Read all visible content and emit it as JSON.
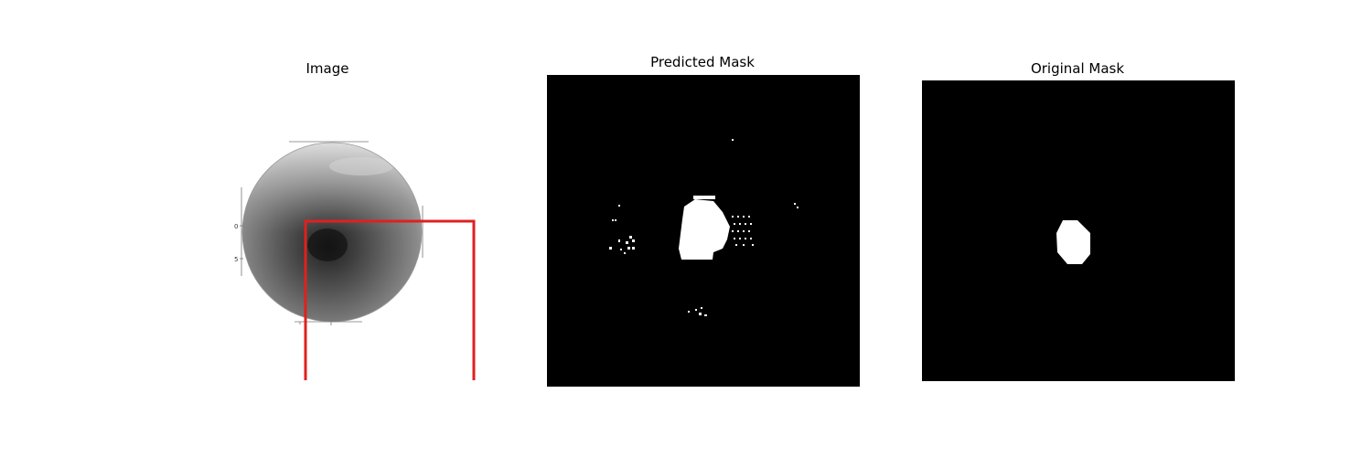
{
  "panels": [
    {
      "title": "Image"
    },
    {
      "title": "Predicted Mask"
    },
    {
      "title": "Original Mask"
    }
  ],
  "inner_ticks": {
    "y_labels": [
      "0",
      "5"
    ]
  },
  "colors": {
    "mask_background": "#000000",
    "mask_foreground": "#ffffff",
    "box_outline": "#e02020"
  }
}
